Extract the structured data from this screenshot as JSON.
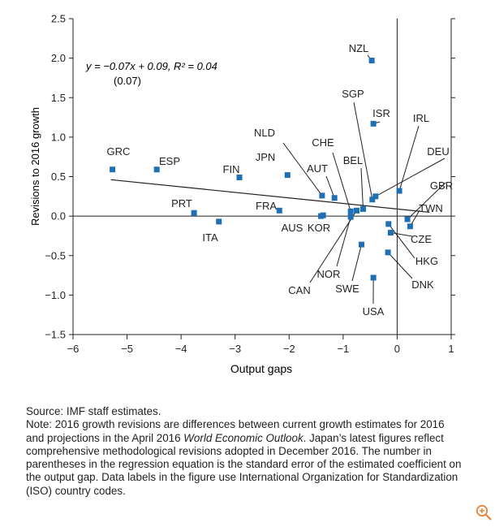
{
  "chart_data": {
    "type": "scatter",
    "xlabel": "Output gaps",
    "ylabel": "Revisions to 2016 growth",
    "xlim": [
      -6,
      1
    ],
    "ylim": [
      -1.5,
      2.5
    ],
    "xticks": [
      "-6",
      "-5",
      "-4",
      "-3",
      "-2",
      "-1",
      "0",
      "1"
    ],
    "yticks": [
      "2.5",
      "2.0",
      "1.5",
      "1.0",
      "0.5",
      "0.0",
      "-0.5",
      "-1.0",
      "-1.5"
    ],
    "grid": false,
    "marker_color": "#1f6fb5",
    "equation": "y = −0.07x + 0.09, R² = 0.04",
    "std_error": "(0.07)",
    "regression": {
      "slope": -0.07,
      "intercept": 0.09,
      "x_from": -5.3,
      "x_to": 0.6
    },
    "points": [
      {
        "label": "GRC",
        "x": -5.27,
        "y": 0.59
      },
      {
        "label": "ESP",
        "x": -4.45,
        "y": 0.59
      },
      {
        "label": "FIN",
        "x": -2.92,
        "y": 0.49
      },
      {
        "label": "JPN",
        "x": -2.03,
        "y": 0.52
      },
      {
        "label": "PRT",
        "x": -3.76,
        "y": 0.04
      },
      {
        "label": "ITA",
        "x": -3.3,
        "y": -0.07
      },
      {
        "label": "FRA",
        "x": -2.18,
        "y": 0.07
      },
      {
        "label": "NLD",
        "x": -1.39,
        "y": 0.26
      },
      {
        "label": "AUT",
        "x": -1.16,
        "y": 0.23
      },
      {
        "label": "AUS",
        "x": -1.41,
        "y": 0.0
      },
      {
        "label": "KOR",
        "x": -1.37,
        "y": 0.01
      },
      {
        "label": "CHE",
        "x": -0.86,
        "y": 0.06
      },
      {
        "label": "BEL",
        "x": -0.63,
        "y": 0.09
      },
      {
        "label": "CAN",
        "x": -0.75,
        "y": 0.07
      },
      {
        "label": "NOR",
        "x": -0.86,
        "y": -0.01
      },
      {
        "label": "SWE",
        "x": -0.66,
        "y": -0.36
      },
      {
        "label": "NZL",
        "x": -0.47,
        "y": 1.97
      },
      {
        "label": "SGP",
        "x": -0.46,
        "y": 0.21
      },
      {
        "label": "ISR",
        "x": -0.44,
        "y": 1.17
      },
      {
        "label": "USA",
        "x": -0.44,
        "y": -0.78
      },
      {
        "label": "IRL",
        "x": 0.04,
        "y": 0.32
      },
      {
        "label": "DEU",
        "x": -0.4,
        "y": 0.25
      },
      {
        "label": "GBR",
        "x": 0.19,
        "y": -0.04
      },
      {
        "label": "TWN",
        "x": 0.24,
        "y": -0.13
      },
      {
        "label": "CZE",
        "x": -0.12,
        "y": -0.21
      },
      {
        "label": "HKG",
        "x": -0.16,
        "y": -0.1
      },
      {
        "label": "DNK",
        "x": -0.17,
        "y": -0.46
      }
    ]
  },
  "notes": {
    "source": "Source: IMF staff estimates.",
    "note_prefix": "Note: 2016 growth revisions are differences between current growth estimates for 2016 and projections in the April 2016 ",
    "note_italic": "World Economic Outlook",
    "note_suffix": ". Japan’s latest figures reflect comprehensive methodological revisions adopted in December 2016. The number in parentheses in the regression equation is the standard error of the estimated coefficient on the output gap. Data labels in the figure use International Organization for Standardization (ISO) country codes."
  },
  "zoom_icon": "zoom-in-icon",
  "accent_color": "#e8833a"
}
